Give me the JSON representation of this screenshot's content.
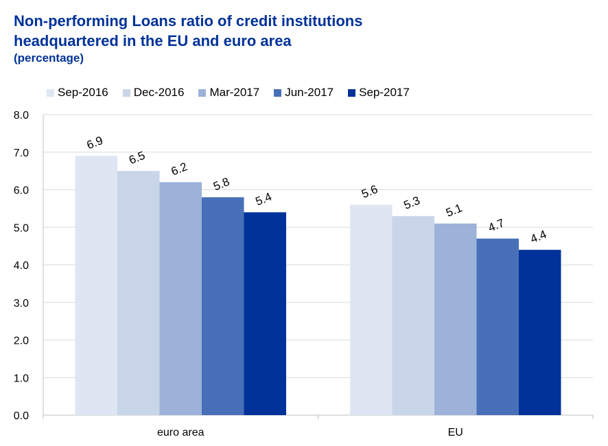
{
  "title_line1": "Non-performing Loans ratio of credit institutions",
  "title_line2": "headquartered in the EU and euro area",
  "subtitle": "(percentage)",
  "chart_data": {
    "type": "bar",
    "categories": [
      "euro area",
      "EU"
    ],
    "series": [
      {
        "name": "Sep-2016",
        "color": "#dde6f2",
        "values": [
          6.9,
          5.6
        ]
      },
      {
        "name": "Dec-2016",
        "color": "#c9d5e8",
        "values": [
          6.5,
          5.3
        ]
      },
      {
        "name": "Mar-2017",
        "color": "#9cb2d9",
        "values": [
          6.2,
          5.1
        ]
      },
      {
        "name": "Jun-2017",
        "color": "#4870b8",
        "values": [
          5.8,
          4.7
        ]
      },
      {
        "name": "Sep-2017",
        "color": "#003299",
        "values": [
          5.4,
          4.4
        ]
      }
    ],
    "data_labels": [
      [
        "6.9",
        "5.6"
      ],
      [
        "6.5",
        "5.3"
      ],
      [
        "6.2",
        "5.1"
      ],
      [
        "5.8",
        "4.7"
      ],
      [
        "5.4",
        "4.4"
      ]
    ],
    "y_ticks": [
      "0.0",
      "1.0",
      "2.0",
      "3.0",
      "4.0",
      "5.0",
      "6.0",
      "7.0",
      "8.0"
    ],
    "ylim": [
      0,
      8
    ],
    "grid": true,
    "legend_position": "top"
  }
}
